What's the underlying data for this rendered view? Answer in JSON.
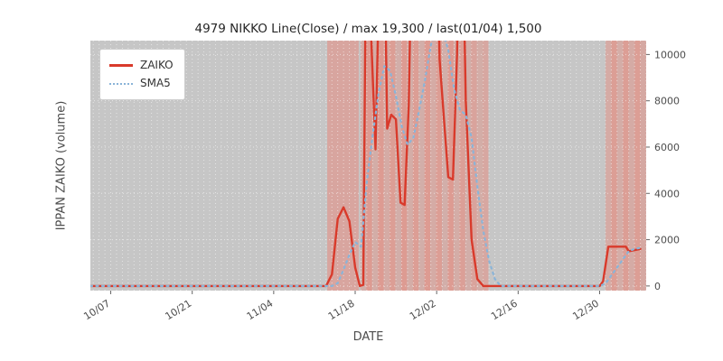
{
  "chart_data": {
    "type": "line",
    "title": "4979 NIKKO Line(Close) / max 19,300 / last(01/04) 1,500",
    "xlabel": "DATE",
    "ylabel": "IPPAN ZAIKO (volume)",
    "x_unit": "days since 10/05",
    "xlim": [
      -1.5,
      94
    ],
    "ylim": [
      -200,
      10600
    ],
    "grid": true,
    "legend_position": "upper left",
    "plot_bg": "#c6c6c6",
    "band_color": "#f07868",
    "x_ticks": [
      {
        "day": 2,
        "label": "10/07"
      },
      {
        "day": 16,
        "label": "10/21"
      },
      {
        "day": 30,
        "label": "11/04"
      },
      {
        "day": 44,
        "label": "11/18"
      },
      {
        "day": 58,
        "label": "12/02"
      },
      {
        "day": 72,
        "label": "12/16"
      },
      {
        "day": 86,
        "label": "12/30"
      }
    ],
    "y_ticks": [
      0,
      2000,
      4000,
      6000,
      8000,
      10000
    ],
    "series": [
      {
        "name": "ZAIKO",
        "color": "#d93a2b",
        "style": "solid",
        "points": [
          [
            -1.5,
            0
          ],
          [
            39,
            0
          ],
          [
            40,
            500
          ],
          [
            41,
            2900
          ],
          [
            42,
            3400
          ],
          [
            43,
            2800
          ],
          [
            44,
            800
          ],
          [
            44.8,
            0
          ],
          [
            45.4,
            50
          ],
          [
            46,
            19300
          ],
          [
            46.8,
            10500
          ],
          [
            47.5,
            5900
          ],
          [
            48.2,
            14500
          ],
          [
            48.8,
            19300
          ],
          [
            49.5,
            6800
          ],
          [
            50.2,
            7400
          ],
          [
            51,
            7200
          ],
          [
            51.8,
            3600
          ],
          [
            52.5,
            3500
          ],
          [
            53.2,
            7800
          ],
          [
            54,
            19300
          ],
          [
            54.8,
            11000
          ],
          [
            55.5,
            16000
          ],
          [
            56.2,
            19300
          ],
          [
            57,
            17000
          ],
          [
            57.8,
            19300
          ],
          [
            58.5,
            9800
          ],
          [
            59.2,
            7400
          ],
          [
            60,
            4700
          ],
          [
            60.8,
            4600
          ],
          [
            61.5,
            10000
          ],
          [
            62.2,
            19300
          ],
          [
            63,
            8000
          ],
          [
            64,
            2000
          ],
          [
            65,
            300
          ],
          [
            66,
            0
          ],
          [
            86,
            0
          ],
          [
            86.6,
            200
          ],
          [
            87.5,
            1700
          ],
          [
            89,
            1700
          ],
          [
            90.5,
            1700
          ],
          [
            91,
            1500
          ],
          [
            93,
            1600
          ]
        ]
      },
      {
        "name": "SMA5",
        "color": "#8ab4d8",
        "style": "dotted",
        "points": [
          [
            -1.5,
            0
          ],
          [
            40,
            0
          ],
          [
            41,
            120
          ],
          [
            42,
            700
          ],
          [
            43,
            1350
          ],
          [
            44,
            1900
          ],
          [
            45,
            1700
          ],
          [
            46,
            4500
          ],
          [
            47,
            6500
          ],
          [
            48,
            8300
          ],
          [
            49,
            9500
          ],
          [
            50,
            9300
          ],
          [
            51,
            8200
          ],
          [
            52,
            6900
          ],
          [
            53,
            6100
          ],
          [
            54,
            6400
          ],
          [
            55,
            7600
          ],
          [
            56,
            8900
          ],
          [
            57,
            10400
          ],
          [
            58,
            11200
          ],
          [
            59,
            11000
          ],
          [
            60,
            10200
          ],
          [
            61,
            8500
          ],
          [
            62,
            7600
          ],
          [
            63,
            7400
          ],
          [
            64,
            6400
          ],
          [
            65,
            4300
          ],
          [
            66,
            2400
          ],
          [
            67,
            1100
          ],
          [
            68,
            300
          ],
          [
            69,
            0
          ],
          [
            86,
            0
          ],
          [
            87,
            100
          ],
          [
            88,
            450
          ],
          [
            89,
            800
          ],
          [
            90,
            1150
          ],
          [
            91,
            1500
          ],
          [
            92,
            1600
          ],
          [
            93,
            1650
          ]
        ]
      }
    ],
    "bands": [
      {
        "start": 39.2,
        "end": 44.6,
        "alpha": 0.42
      },
      {
        "start": 44.9,
        "end": 45.9,
        "alpha": 0.3
      },
      {
        "start": 45.9,
        "end": 46.9,
        "alpha": 0.55
      },
      {
        "start": 46.9,
        "end": 47.9,
        "alpha": 0.32
      },
      {
        "start": 47.9,
        "end": 48.9,
        "alpha": 0.55
      },
      {
        "start": 48.9,
        "end": 49.9,
        "alpha": 0.35
      },
      {
        "start": 49.9,
        "end": 50.9,
        "alpha": 0.52
      },
      {
        "start": 50.9,
        "end": 51.9,
        "alpha": 0.3
      },
      {
        "start": 51.9,
        "end": 52.9,
        "alpha": 0.55
      },
      {
        "start": 52.9,
        "end": 53.9,
        "alpha": 0.33
      },
      {
        "start": 53.9,
        "end": 54.9,
        "alpha": 0.52
      },
      {
        "start": 54.9,
        "end": 55.9,
        "alpha": 0.3
      },
      {
        "start": 55.9,
        "end": 56.9,
        "alpha": 0.55
      },
      {
        "start": 56.9,
        "end": 57.9,
        "alpha": 0.35
      },
      {
        "start": 57.9,
        "end": 58.9,
        "alpha": 0.52
      },
      {
        "start": 58.9,
        "end": 59.9,
        "alpha": 0.3
      },
      {
        "start": 59.9,
        "end": 60.9,
        "alpha": 0.55
      },
      {
        "start": 60.9,
        "end": 61.9,
        "alpha": 0.33
      },
      {
        "start": 61.9,
        "end": 62.9,
        "alpha": 0.5
      },
      {
        "start": 62.9,
        "end": 63.9,
        "alpha": 0.3
      },
      {
        "start": 63.9,
        "end": 64.9,
        "alpha": 0.45
      },
      {
        "start": 64.9,
        "end": 65.9,
        "alpha": 0.32
      },
      {
        "start": 65.9,
        "end": 66.9,
        "alpha": 0.4
      },
      {
        "start": 87,
        "end": 88,
        "alpha": 0.35
      },
      {
        "start": 88,
        "end": 89,
        "alpha": 0.52
      },
      {
        "start": 89,
        "end": 90,
        "alpha": 0.33
      },
      {
        "start": 90,
        "end": 91,
        "alpha": 0.52
      },
      {
        "start": 91,
        "end": 92,
        "alpha": 0.35
      },
      {
        "start": 92,
        "end": 93,
        "alpha": 0.52
      },
      {
        "start": 93,
        "end": 94,
        "alpha": 0.38
      }
    ]
  }
}
